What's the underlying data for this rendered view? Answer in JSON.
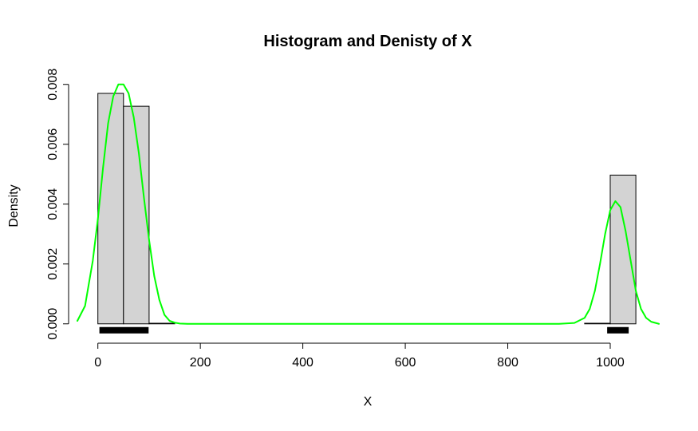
{
  "chart_data": {
    "type": "bar",
    "title": "Histogram and Denisty of X",
    "xlabel": "X",
    "ylabel": "Density",
    "xlim": [
      -40,
      1095
    ],
    "ylim": [
      -0.0003,
      0.0085
    ],
    "xticks": [
      0,
      200,
      400,
      600,
      800,
      1000
    ],
    "xtick_labels": [
      "0",
      "200",
      "400",
      "600",
      "800",
      "1000"
    ],
    "yticks": [
      0.0,
      0.002,
      0.004,
      0.006,
      0.008
    ],
    "ytick_labels": [
      "0.000",
      "0.002",
      "0.004",
      "0.006",
      "0.008"
    ],
    "grid": false,
    "histogram": {
      "bin_edges": [
        0,
        50,
        100,
        150,
        200,
        250,
        300,
        350,
        400,
        450,
        500,
        550,
        600,
        650,
        700,
        750,
        800,
        850,
        900,
        950,
        1000,
        1050
      ],
      "density": [
        0.0077,
        0.00727,
        2e-05,
        0,
        0,
        0,
        0,
        0,
        0,
        0,
        0,
        0,
        0,
        0,
        0,
        0,
        0,
        0,
        0,
        2e-05,
        0.00497
      ],
      "fill_color": "#d3d3d3",
      "edge_color": "#000000"
    },
    "density_curve": {
      "color": "#00ff00",
      "x": [
        -40,
        -25,
        -10,
        0,
        10,
        20,
        30,
        40,
        50,
        60,
        70,
        80,
        90,
        100,
        110,
        120,
        130,
        140,
        150,
        160,
        175,
        200,
        400,
        600,
        800,
        900,
        930,
        950,
        960,
        970,
        980,
        990,
        1000,
        1010,
        1020,
        1030,
        1040,
        1050,
        1060,
        1070,
        1080,
        1095
      ],
      "y": [
        0.0001,
        0.0006,
        0.0021,
        0.0035,
        0.0052,
        0.0067,
        0.0076,
        0.008,
        0.008,
        0.0077,
        0.0069,
        0.0057,
        0.0042,
        0.0028,
        0.0016,
        0.0008,
        0.0003,
        0.0001,
        4e-05,
        1e-05,
        0.0,
        0.0,
        0.0,
        0.0,
        0.0,
        0.0,
        3e-05,
        0.0002,
        0.0005,
        0.0011,
        0.002,
        0.003,
        0.0038,
        0.0041,
        0.0039,
        0.0031,
        0.0021,
        0.0011,
        0.0005,
        0.0002,
        7e-05,
        0.0
      ]
    },
    "rug": {
      "color": "#000000",
      "segments": [
        [
          3,
          99
        ],
        [
          994,
          1036
        ]
      ]
    }
  }
}
